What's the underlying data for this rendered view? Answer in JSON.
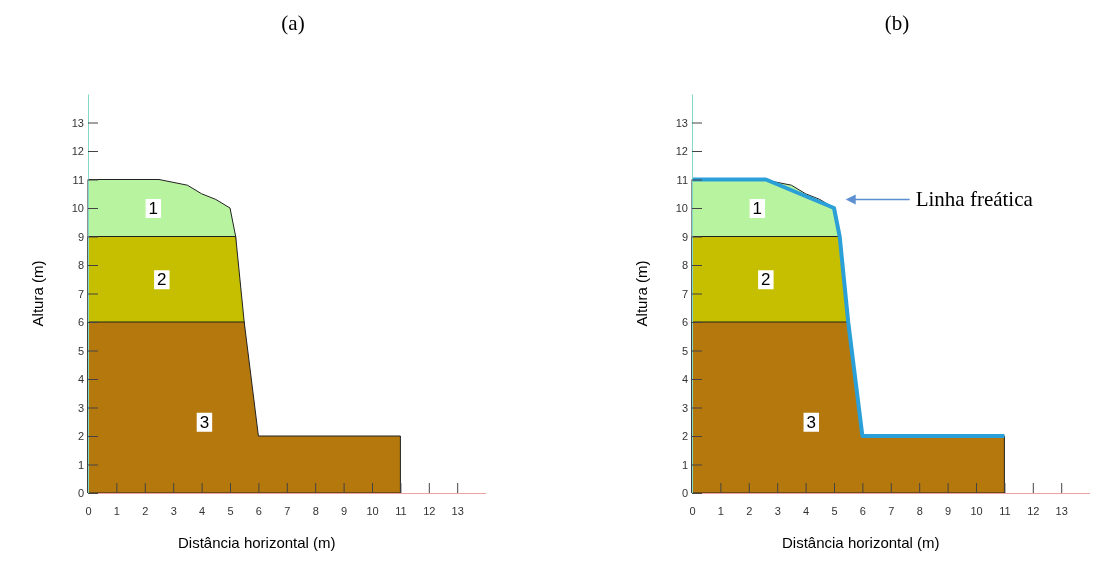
{
  "chart_data": [
    {
      "type": "area",
      "title": "(a)",
      "xlabel": "Distância horizontal (m)",
      "ylabel": "Altura (m)",
      "xlim": [
        0,
        14
      ],
      "ylim": [
        0,
        14
      ],
      "xticks": [
        0,
        1,
        2,
        3,
        4,
        5,
        6,
        7,
        8,
        9,
        10,
        11,
        12,
        13
      ],
      "yticks": [
        0,
        1,
        2,
        3,
        4,
        5,
        6,
        7,
        8,
        9,
        10,
        11,
        12,
        13
      ],
      "series": [
        {
          "color": "#b8f4a0",
          "x": [
            0,
            2.5,
            3.5,
            4,
            4.5,
            5,
            5.2
          ],
          "values": [
            11,
            11,
            10.8,
            10.5,
            10.3,
            10,
            9
          ]
        },
        {
          "color": "#c5bf00",
          "x": [
            0,
            5.2,
            5.5
          ],
          "values": [
            9,
            9,
            6
          ]
        },
        {
          "color": "#b5780c",
          "x": [
            0,
            5.5,
            6,
            11
          ],
          "values": [
            6,
            6,
            2,
            2
          ]
        }
      ],
      "annotations": [
        {
          "text": "1",
          "x": 2.3,
          "y": 10
        },
        {
          "text": "2",
          "x": 2.6,
          "y": 7.5
        },
        {
          "text": "3",
          "x": 4.1,
          "y": 2.5
        }
      ]
    },
    {
      "type": "area",
      "title": "(b)",
      "xlabel": "Distância horizontal (m)",
      "ylabel": "Altura (m)",
      "xlim": [
        0,
        14
      ],
      "ylim": [
        0,
        14
      ],
      "xticks": [
        0,
        1,
        2,
        3,
        4,
        5,
        6,
        7,
        8,
        9,
        10,
        11,
        12,
        13
      ],
      "yticks": [
        0,
        1,
        2,
        3,
        4,
        5,
        6,
        7,
        8,
        9,
        10,
        11,
        12,
        13
      ],
      "series": [
        {
          "color": "#b8f4a0",
          "x": [
            0,
            2.5,
            3.5,
            4,
            4.5,
            5,
            5.2
          ],
          "values": [
            11,
            11,
            10.8,
            10.5,
            10.3,
            10,
            9
          ]
        },
        {
          "color": "#c5bf00",
          "x": [
            0,
            5.2,
            5.5
          ],
          "values": [
            9,
            9,
            6
          ]
        },
        {
          "color": "#b5780c",
          "x": [
            0,
            5.5,
            6,
            11
          ],
          "values": [
            6,
            6,
            2,
            2
          ]
        },
        {
          "type": "line",
          "color": "#2a9fd8",
          "x": [
            0,
            2.6,
            5,
            5.2,
            5.5,
            6,
            11
          ],
          "values": [
            11,
            11,
            10,
            9,
            6,
            2,
            2
          ]
        }
      ],
      "annotations": [
        {
          "text": "1",
          "x": 2.3,
          "y": 10
        },
        {
          "text": "2",
          "x": 2.6,
          "y": 7.5
        },
        {
          "text": "3",
          "x": 4.2,
          "y": 2.5
        },
        "Linha freática"
      ]
    }
  ]
}
